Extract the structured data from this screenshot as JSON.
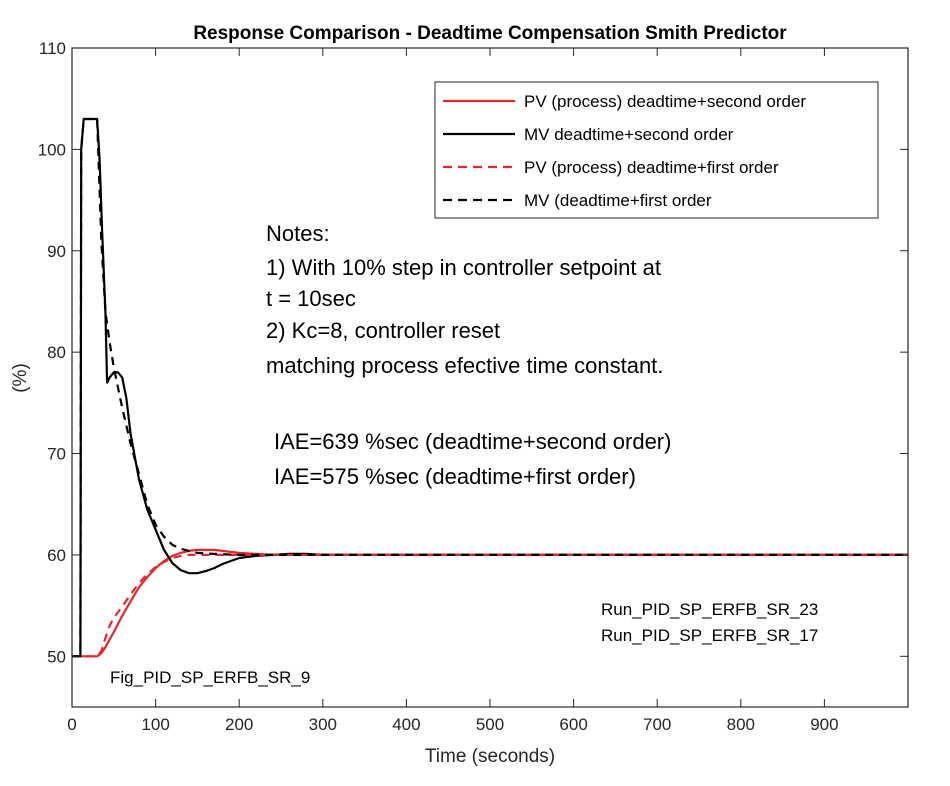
{
  "chart_data": {
    "type": "line",
    "title": "Response Comparison - Deadtime Compensation Smith Predictor",
    "xlabel": "Time (seconds)",
    "ylabel": "(%)",
    "xlim": [
      0,
      1000
    ],
    "ylim": [
      45,
      110
    ],
    "xticks": [
      0,
      100,
      200,
      300,
      400,
      500,
      600,
      700,
      800,
      900
    ],
    "yticks": [
      50,
      60,
      70,
      80,
      90,
      100,
      110
    ],
    "series": [
      {
        "name": "PV (process) deadtime+second order",
        "color": "#e8262a",
        "dash": "solid",
        "x": [
          0,
          30,
          35,
          40,
          50,
          60,
          70,
          80,
          90,
          100,
          110,
          120,
          130,
          140,
          150,
          160,
          170,
          180,
          190,
          200,
          220,
          240,
          260,
          280,
          300,
          400,
          600,
          800,
          1000
        ],
        "y": [
          50,
          50,
          50.3,
          50.9,
          52.4,
          54.0,
          55.4,
          56.8,
          57.8,
          58.7,
          59.4,
          59.9,
          60.2,
          60.4,
          60.5,
          60.5,
          60.5,
          60.4,
          60.3,
          60.2,
          60.1,
          60.0,
          60.0,
          60.0,
          60.0,
          60.0,
          60.0,
          60.0,
          60.0
        ]
      },
      {
        "name": "MV deadtime+second order",
        "color": "#000000",
        "dash": "solid",
        "x": [
          0,
          10,
          11,
          14,
          20,
          30,
          33,
          36,
          40,
          42,
          45,
          50,
          55,
          60,
          65,
          70,
          80,
          90,
          100,
          110,
          120,
          130,
          140,
          150,
          160,
          170,
          180,
          190,
          200,
          220,
          240,
          260,
          280,
          300,
          400,
          600,
          800,
          1000
        ],
        "y": [
          50,
          50,
          100,
          103,
          103,
          103,
          99,
          92,
          84,
          77,
          77.5,
          78,
          78,
          77.5,
          75.5,
          72,
          67.5,
          64.5,
          62.5,
          60.5,
          59.2,
          58.5,
          58.2,
          58.2,
          58.4,
          58.7,
          59.1,
          59.4,
          59.7,
          59.9,
          60.0,
          60.1,
          60.1,
          60.0,
          60.0,
          60.0,
          60.0,
          60.0
        ]
      },
      {
        "name": "PV (process) deadtime+first order",
        "color": "#e8262a",
        "dash": "dashed",
        "x": [
          0,
          30,
          35,
          40,
          45,
          50,
          60,
          70,
          80,
          90,
          100,
          110,
          120,
          130,
          140,
          150,
          160,
          180,
          200,
          220,
          240,
          300,
          400,
          600,
          800,
          1000
        ],
        "y": [
          50,
          50,
          50.5,
          51.8,
          53.0,
          53.8,
          54.9,
          56.1,
          57.2,
          58.1,
          58.8,
          59.3,
          59.7,
          59.9,
          60.0,
          60.0,
          60.0,
          60.0,
          60.0,
          60.0,
          60.0,
          60.0,
          60.0,
          60.0,
          60.0,
          60.0
        ]
      },
      {
        "name": "MV (deadtime+first order",
        "color": "#000000",
        "dash": "dashed",
        "x": [
          0,
          10,
          11,
          14,
          20,
          30,
          35,
          40,
          45,
          50,
          55,
          60,
          70,
          80,
          90,
          100,
          110,
          120,
          130,
          140,
          150,
          170,
          200,
          250,
          300,
          400,
          600,
          800,
          1000
        ],
        "y": [
          50,
          50,
          100,
          103,
          103,
          103,
          91,
          84,
          81,
          78.5,
          76.5,
          74.5,
          71,
          68,
          65,
          63,
          61.8,
          61,
          60.6,
          60.4,
          60.2,
          60.1,
          60.0,
          60.0,
          60.0,
          60.0,
          60.0,
          60.0,
          60.0
        ]
      }
    ],
    "legend_position": "top-right",
    "notes": [
      "Notes:",
      "1) With 10% step in controller setpoint at",
      "t = 10sec",
      "2) Kc=8, controller reset",
      "matching process efective time constant."
    ],
    "iae": [
      "IAE=639 %sec (deadtime+second order)",
      "IAE=575 %sec (deadtime+first order)"
    ],
    "run_ids": [
      "Run_PID_SP_ERFB_SR_23",
      "Run_PID_SP_ERFB_SR_17"
    ],
    "figure_id": "Fig_PID_SP_ERFB_SR_9"
  }
}
